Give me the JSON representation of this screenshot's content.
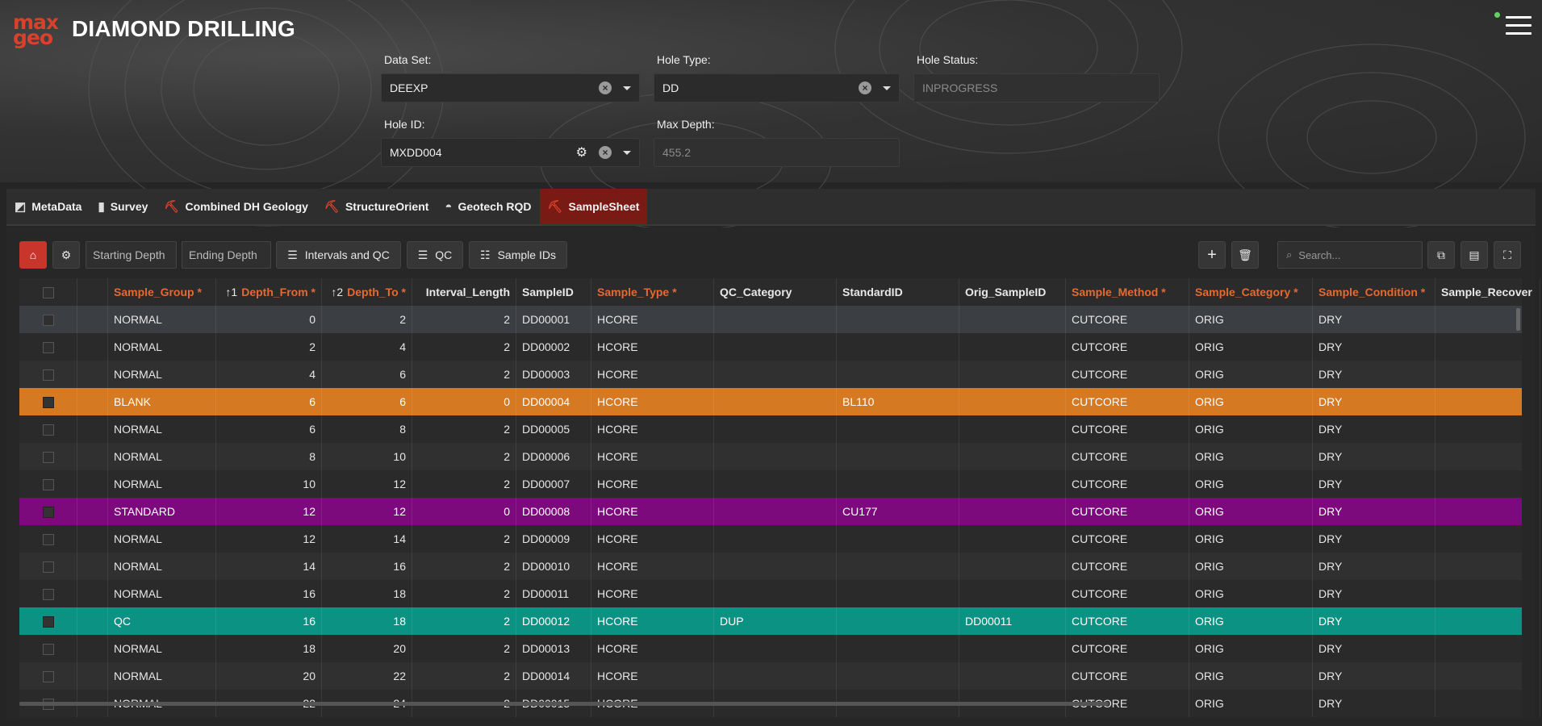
{
  "app": {
    "logo_line1": "max",
    "logo_line2": "geo",
    "title": "DIAMOND DRILLING"
  },
  "filters": {
    "data_set": {
      "label": "Data Set:",
      "value": "DEEXP"
    },
    "hole_type": {
      "label": "Hole Type:",
      "value": "DD"
    },
    "hole_status": {
      "label": "Hole Status:",
      "value": "INPROGRESS"
    },
    "hole_id": {
      "label": "Hole ID:",
      "value": "MXDD004"
    },
    "max_depth": {
      "label": "Max Depth:",
      "value": "455.2"
    }
  },
  "tabs": [
    {
      "label": "MetaData",
      "icon": "metadata-icon"
    },
    {
      "label": "Survey",
      "icon": "survey-icon"
    },
    {
      "label": "Combined DH Geology",
      "icon": "pick-icon"
    },
    {
      "label": "StructureOrient",
      "icon": "pick-icon"
    },
    {
      "label": "Geotech RQD",
      "icon": "helmet-icon"
    },
    {
      "label": "SampleSheet",
      "icon": "pick-icon",
      "active": true
    }
  ],
  "toolbar": {
    "starting_depth_placeholder": "Starting Depth",
    "ending_depth_placeholder": "Ending Depth",
    "intervals_qc_label": "Intervals and QC",
    "qc_label": "QC",
    "sample_ids_label": "Sample IDs",
    "search_placeholder": "Search..."
  },
  "grid": {
    "columns": [
      {
        "key": "Sample_Group",
        "label": "Sample_Group *",
        "required": true
      },
      {
        "key": "Depth_From",
        "label": "Depth_From *",
        "required": true,
        "sort": "↑1"
      },
      {
        "key": "Depth_To",
        "label": "Depth_To *",
        "required": true,
        "sort": "↑2"
      },
      {
        "key": "Interval_Length",
        "label": "Interval_Length",
        "required": false
      },
      {
        "key": "SampleID",
        "label": "SampleID",
        "required": false
      },
      {
        "key": "Sample_Type",
        "label": "Sample_Type *",
        "required": true
      },
      {
        "key": "QC_Category",
        "label": "QC_Category",
        "required": false
      },
      {
        "key": "StandardID",
        "label": "StandardID",
        "required": false
      },
      {
        "key": "Orig_SampleID",
        "label": "Orig_SampleID",
        "required": false
      },
      {
        "key": "Sample_Method",
        "label": "Sample_Method *",
        "required": true
      },
      {
        "key": "Sample_Category",
        "label": "Sample_Category *",
        "required": true
      },
      {
        "key": "Sample_Condition",
        "label": "Sample_Condition *",
        "required": true
      },
      {
        "key": "Sample_Recovery",
        "label": "Sample_Recover",
        "required": false
      }
    ],
    "rows": [
      {
        "group": "NORMAL",
        "from": "0",
        "to": "2",
        "len": "2",
        "id": "DD00001",
        "type": "HCORE",
        "qc": "",
        "std": "",
        "orig": "",
        "method": "CUTCORE",
        "cat": "ORIG",
        "cond": "DRY",
        "rec": "",
        "style": "sel"
      },
      {
        "group": "NORMAL",
        "from": "2",
        "to": "4",
        "len": "2",
        "id": "DD00002",
        "type": "HCORE",
        "qc": "",
        "std": "",
        "orig": "",
        "method": "CUTCORE",
        "cat": "ORIG",
        "cond": "DRY",
        "rec": "",
        "style": "even"
      },
      {
        "group": "NORMAL",
        "from": "4",
        "to": "6",
        "len": "2",
        "id": "DD00003",
        "type": "HCORE",
        "qc": "",
        "std": "",
        "orig": "",
        "method": "CUTCORE",
        "cat": "ORIG",
        "cond": "DRY",
        "rec": "",
        "style": "odd"
      },
      {
        "group": "BLANK",
        "from": "6",
        "to": "6",
        "len": "0",
        "id": "DD00004",
        "type": "HCORE",
        "qc": "",
        "std": "BL110",
        "orig": "",
        "method": "CUTCORE",
        "cat": "ORIG",
        "cond": "DRY",
        "rec": "",
        "style": "blank"
      },
      {
        "group": "NORMAL",
        "from": "6",
        "to": "8",
        "len": "2",
        "id": "DD00005",
        "type": "HCORE",
        "qc": "",
        "std": "",
        "orig": "",
        "method": "CUTCORE",
        "cat": "ORIG",
        "cond": "DRY",
        "rec": "",
        "style": "even"
      },
      {
        "group": "NORMAL",
        "from": "8",
        "to": "10",
        "len": "2",
        "id": "DD00006",
        "type": "HCORE",
        "qc": "",
        "std": "",
        "orig": "",
        "method": "CUTCORE",
        "cat": "ORIG",
        "cond": "DRY",
        "rec": "",
        "style": "odd"
      },
      {
        "group": "NORMAL",
        "from": "10",
        "to": "12",
        "len": "2",
        "id": "DD00007",
        "type": "HCORE",
        "qc": "",
        "std": "",
        "orig": "",
        "method": "CUTCORE",
        "cat": "ORIG",
        "cond": "DRY",
        "rec": "",
        "style": "even"
      },
      {
        "group": "STANDARD",
        "from": "12",
        "to": "12",
        "len": "0",
        "id": "DD00008",
        "type": "HCORE",
        "qc": "",
        "std": "CU177",
        "orig": "",
        "method": "CUTCORE",
        "cat": "ORIG",
        "cond": "DRY",
        "rec": "",
        "style": "std"
      },
      {
        "group": "NORMAL",
        "from": "12",
        "to": "14",
        "len": "2",
        "id": "DD00009",
        "type": "HCORE",
        "qc": "",
        "std": "",
        "orig": "",
        "method": "CUTCORE",
        "cat": "ORIG",
        "cond": "DRY",
        "rec": "",
        "style": "even"
      },
      {
        "group": "NORMAL",
        "from": "14",
        "to": "16",
        "len": "2",
        "id": "DD00010",
        "type": "HCORE",
        "qc": "",
        "std": "",
        "orig": "",
        "method": "CUTCORE",
        "cat": "ORIG",
        "cond": "DRY",
        "rec": "",
        "style": "odd"
      },
      {
        "group": "NORMAL",
        "from": "16",
        "to": "18",
        "len": "2",
        "id": "DD00011",
        "type": "HCORE",
        "qc": "",
        "std": "",
        "orig": "",
        "method": "CUTCORE",
        "cat": "ORIG",
        "cond": "DRY",
        "rec": "",
        "style": "even"
      },
      {
        "group": "QC",
        "from": "16",
        "to": "18",
        "len": "2",
        "id": "DD00012",
        "type": "HCORE",
        "qc": "DUP",
        "std": "",
        "orig": "DD00011",
        "method": "CUTCORE",
        "cat": "ORIG",
        "cond": "DRY",
        "rec": "",
        "style": "qc"
      },
      {
        "group": "NORMAL",
        "from": "18",
        "to": "20",
        "len": "2",
        "id": "DD00013",
        "type": "HCORE",
        "qc": "",
        "std": "",
        "orig": "",
        "method": "CUTCORE",
        "cat": "ORIG",
        "cond": "DRY",
        "rec": "",
        "style": "even"
      },
      {
        "group": "NORMAL",
        "from": "20",
        "to": "22",
        "len": "2",
        "id": "DD00014",
        "type": "HCORE",
        "qc": "",
        "std": "",
        "orig": "",
        "method": "CUTCORE",
        "cat": "ORIG",
        "cond": "DRY",
        "rec": "",
        "style": "odd"
      },
      {
        "group": "NORMAL",
        "from": "22",
        "to": "24",
        "len": "2",
        "id": "DD00015",
        "type": "HCORE",
        "qc": "",
        "std": "",
        "orig": "",
        "method": "CUTCORE",
        "cat": "ORIG",
        "cond": "DRY",
        "rec": "",
        "style": "even"
      }
    ]
  },
  "colors": {
    "brand": "#d9412b",
    "required_header": "#e36a33",
    "blank_row": "#d57a22",
    "standard_row": "#7d0a7d",
    "qc_row": "#0c9283"
  }
}
